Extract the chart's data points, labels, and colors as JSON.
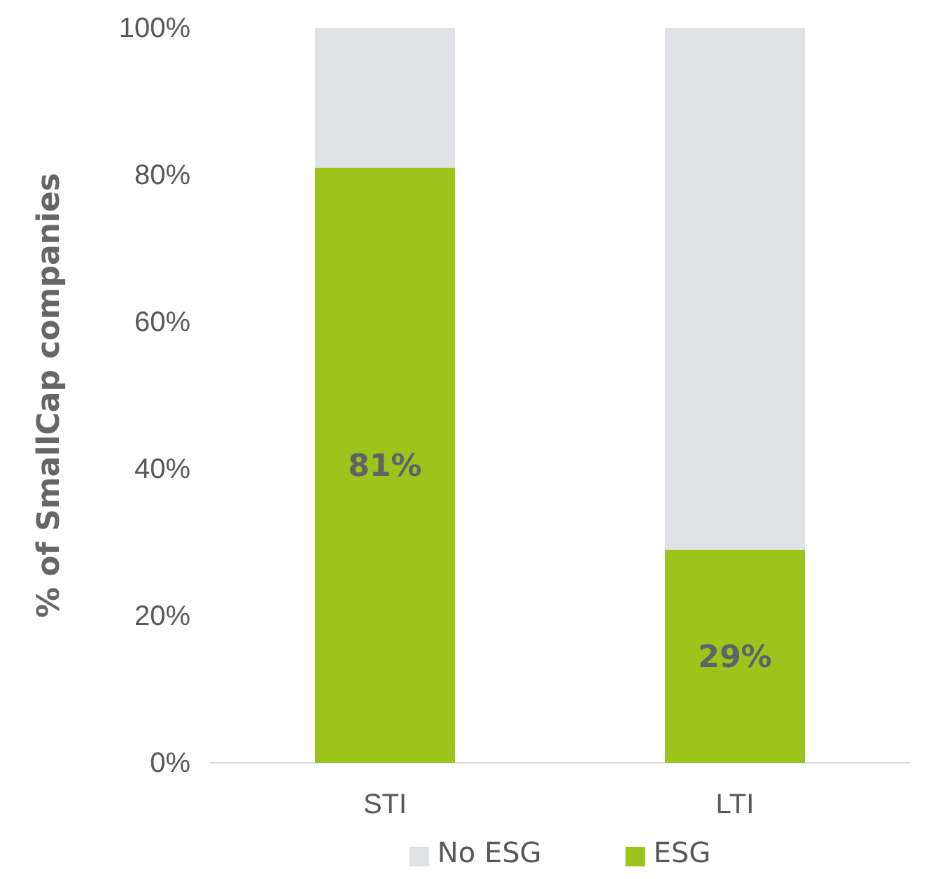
{
  "chart_data": {
    "type": "bar",
    "stacked": true,
    "ylabel": "% of SmallCap companies",
    "categories": [
      "STI",
      "LTI"
    ],
    "series": [
      {
        "name": "ESG",
        "color": "#9dc41a",
        "values": [
          81,
          29
        ],
        "value_labels": [
          "81%",
          "29%"
        ]
      },
      {
        "name": "No ESG",
        "color": "#dfe1e4",
        "values": [
          19,
          71
        ]
      }
    ],
    "ylim": [
      0,
      100
    ],
    "yticks": [
      {
        "value": 0,
        "label": "0%"
      },
      {
        "value": 20,
        "label": "20%"
      },
      {
        "value": 40,
        "label": "40%"
      },
      {
        "value": 60,
        "label": "60%"
      },
      {
        "value": 80,
        "label": "80%"
      },
      {
        "value": 100,
        "label": "100%"
      }
    ],
    "grid": false,
    "legend": "bottom"
  }
}
